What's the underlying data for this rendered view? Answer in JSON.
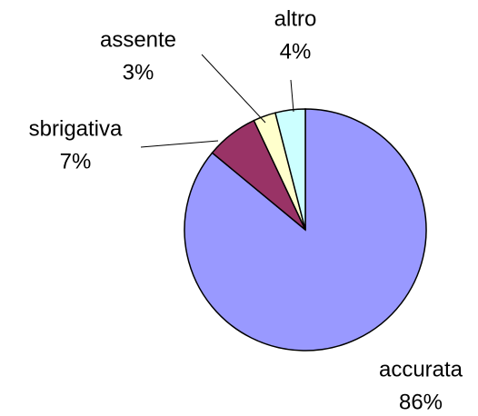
{
  "chart_data": {
    "type": "pie",
    "categories": [
      "accurata",
      "sbrigativa",
      "assente",
      "altro"
    ],
    "values": [
      86,
      7,
      3,
      4
    ],
    "value_labels": [
      "86%",
      "7%",
      "3%",
      "4%"
    ],
    "colors": [
      "#9999ff",
      "#993366",
      "#ffffcc",
      "#ccffff"
    ]
  }
}
